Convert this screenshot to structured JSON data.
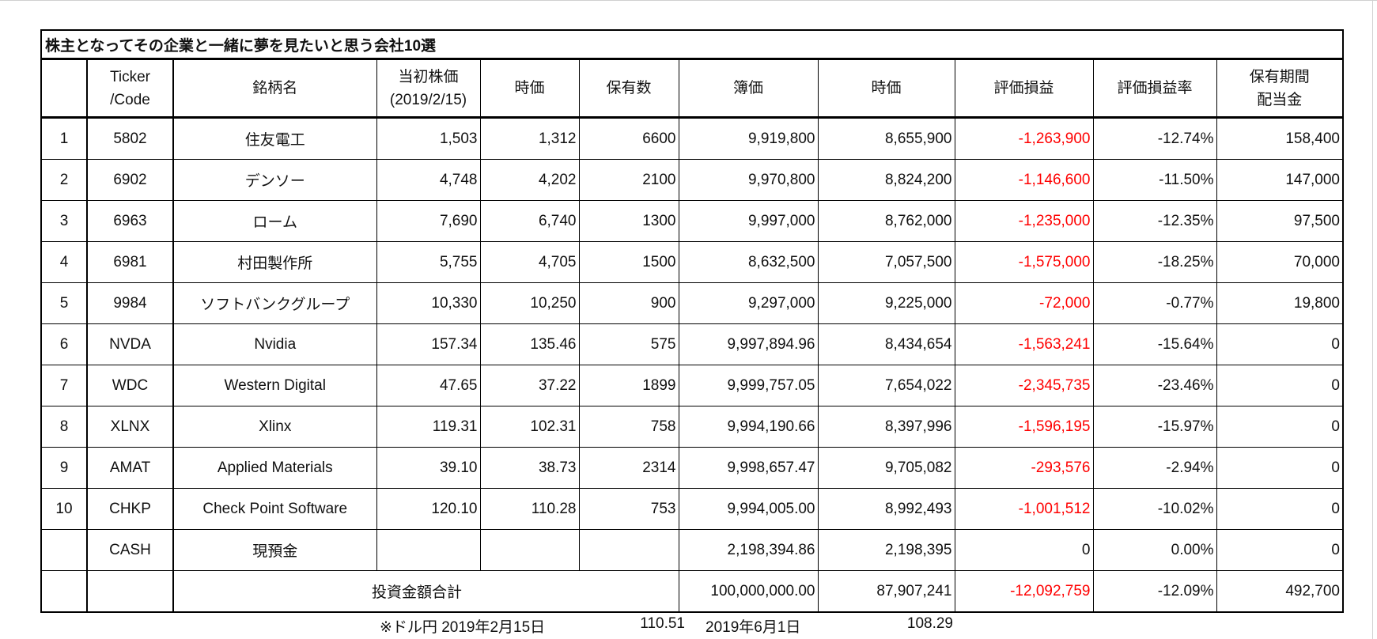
{
  "title": "株主となってその企業と一緒に夢を見たいと思う会社10選",
  "headers": [
    "",
    "Ticker\n/Code",
    "銘柄名",
    "当初株価\n(2019/2/15)",
    "時価",
    "保有数",
    "簿価",
    "時価",
    "評価損益",
    "評価損益率",
    "保有期間\n配当金"
  ],
  "header_lines": [
    [
      ""
    ],
    [
      "Ticker",
      "/Code"
    ],
    [
      "銘柄名"
    ],
    [
      "当初株価",
      "(2019/2/15)"
    ],
    [
      "時価"
    ],
    [
      "保有数"
    ],
    [
      "簿価"
    ],
    [
      "時価"
    ],
    [
      "評価損益"
    ],
    [
      "評価損益率"
    ],
    [
      "保有期間",
      "配当金"
    ]
  ],
  "rows": [
    [
      "1",
      "5802",
      "住友電工",
      "1,503",
      "1,312",
      "6600",
      "9,919,800",
      "8,655,900",
      "-1,263,900",
      "-12.74%",
      "158,400"
    ],
    [
      "2",
      "6902",
      "デンソー",
      "4,748",
      "4,202",
      "2100",
      "9,970,800",
      "8,824,200",
      "-1,146,600",
      "-11.50%",
      "147,000"
    ],
    [
      "3",
      "6963",
      "ローム",
      "7,690",
      "6,740",
      "1300",
      "9,997,000",
      "8,762,000",
      "-1,235,000",
      "-12.35%",
      "97,500"
    ],
    [
      "4",
      "6981",
      "村田製作所",
      "5,755",
      "4,705",
      "1500",
      "8,632,500",
      "7,057,500",
      "-1,575,000",
      "-18.25%",
      "70,000"
    ],
    [
      "5",
      "9984",
      "ソフトバンクグループ",
      "10,330",
      "10,250",
      "900",
      "9,297,000",
      "9,225,000",
      "-72,000",
      "-0.77%",
      "19,800"
    ],
    [
      "6",
      "NVDA",
      "Nvidia",
      "157.34",
      "135.46",
      "575",
      "9,997,894.96",
      "8,434,654",
      "-1,563,241",
      "-15.64%",
      "0"
    ],
    [
      "7",
      "WDC",
      "Western Digital",
      "47.65",
      "37.22",
      "1899",
      "9,999,757.05",
      "7,654,022",
      "-2,345,735",
      "-23.46%",
      "0"
    ],
    [
      "8",
      "XLNX",
      "Xlinx",
      "119.31",
      "102.31",
      "758",
      "9,994,190.66",
      "8,397,996",
      "-1,596,195",
      "-15.97%",
      "0"
    ],
    [
      "9",
      "AMAT",
      "Applied Materials",
      "39.10",
      "38.73",
      "2314",
      "9,998,657.47",
      "9,705,082",
      "-293,576",
      "-2.94%",
      "0"
    ],
    [
      "10",
      "CHKP",
      "Check Point Software",
      "120.10",
      "110.28",
      "753",
      "9,994,005.00",
      "8,992,493",
      "-1,001,512",
      "-10.02%",
      "0"
    ],
    [
      "",
      "CASH",
      "現預金",
      "",
      "",
      "",
      "2,198,394.86",
      "2,198,395",
      "0",
      "0.00%",
      "0"
    ]
  ],
  "total": {
    "label": "投資金額合計",
    "book": "100,000,000.00",
    "market": "87,907,241",
    "pl": "-12,092,759",
    "pl_rate": "-12.09%",
    "dividend": "492,700"
  },
  "footer": {
    "fx_label": "※ドル円 2019年2月15日",
    "fx_1": "110.51",
    "date_2": "2019年6月1日",
    "fx_2": "108.29"
  },
  "colors": {
    "negative": "#ff0000"
  }
}
